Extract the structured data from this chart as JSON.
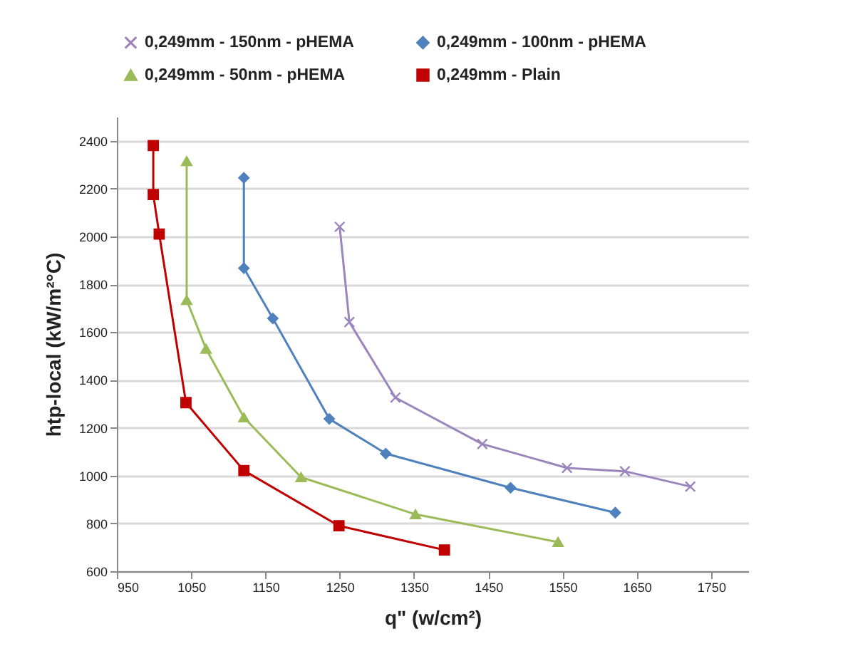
{
  "chart_data": {
    "type": "line",
    "xlabel": "q\" (w/cm²)",
    "ylabel": "htp-local (kW/m²°C)",
    "xlim": [
      950,
      1800
    ],
    "xticks": [
      950,
      1050,
      1150,
      1250,
      1350,
      1450,
      1550,
      1650,
      1750
    ],
    "ylim": [
      600,
      2500
    ],
    "yticks": [
      600,
      800,
      1000,
      1200,
      1400,
      1600,
      1800,
      2000,
      2200,
      2400
    ],
    "grid": "y",
    "legend": "top",
    "series": [
      {
        "name": "0,249mm - 150nm - pHEMA",
        "color": "#9a85bd",
        "marker": "cross",
        "x": [
          1250,
          1263,
          1325,
          1442,
          1556,
          1634,
          1722
        ],
        "values": [
          2040,
          1642,
          1326,
          1132,
          1032,
          1018,
          954
        ]
      },
      {
        "name": "0,249mm - 100nm - pHEMA",
        "color": "#4f81bd",
        "marker": "diamond",
        "x": [
          1121,
          1121,
          1160,
          1236,
          1312,
          1480,
          1621
        ],
        "values": [
          2245,
          1867,
          1657,
          1237,
          1092,
          949,
          845
        ]
      },
      {
        "name": "0,249mm - 50nm - pHEMA",
        "color": "#9bbb59",
        "marker": "triangle",
        "x": [
          1044,
          1044,
          1070,
          1121,
          1198,
          1352,
          1544
        ],
        "values": [
          2315,
          1734,
          1530,
          1243,
          993,
          838,
          722
        ]
      },
      {
        "name": "0,249mm - Plain",
        "color": "#c00000",
        "marker": "square",
        "x": [
          999,
          999,
          1007,
          1043,
          1121,
          1249,
          1391
        ],
        "values": [
          2380,
          2175,
          2010,
          1305,
          1021,
          790,
          689
        ]
      }
    ]
  }
}
